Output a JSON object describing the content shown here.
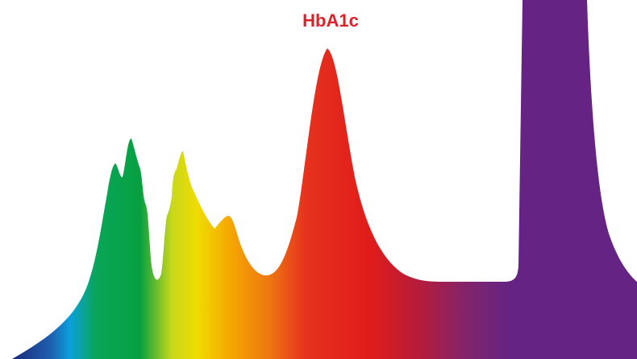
{
  "peak_label": "HbA1c"
}
